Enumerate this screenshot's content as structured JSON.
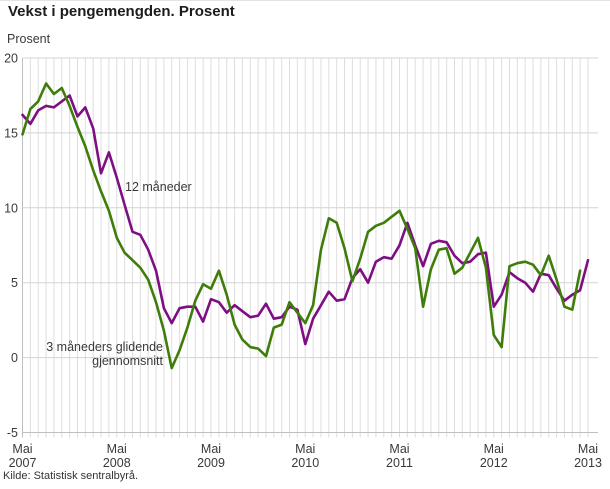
{
  "header": {
    "title": "Vekst i pengemengden. Prosent"
  },
  "source": {
    "text": "Kilde: Statistisk sentralbyrå."
  },
  "chart_data": {
    "type": "line",
    "title": "Vekst i pengemengden. Prosent",
    "ylabel": "Prosent",
    "xlabel": "",
    "ylim": [
      -5,
      20
    ],
    "y_ticks": [
      20,
      15,
      10,
      5,
      0,
      -5
    ],
    "grid": "both",
    "months_total": 73,
    "x_start": "2007-05",
    "x_end": "2013-05",
    "x_ticks": [
      {
        "at": 0,
        "line1": "Mai",
        "line2": "2007"
      },
      {
        "at": 12,
        "line1": "Mai",
        "line2": "2008"
      },
      {
        "at": 24,
        "line1": "Mai",
        "line2": "2009"
      },
      {
        "at": 36,
        "line1": "Mai",
        "line2": "2010"
      },
      {
        "at": 48,
        "line1": "Mai",
        "line2": "2011"
      },
      {
        "at": 60,
        "line1": "Mai",
        "line2": "2012"
      },
      {
        "at": 72,
        "line1": "Mai",
        "line2": "2013"
      }
    ],
    "series": [
      {
        "name": "12 måneder",
        "color": "#7d0f83",
        "values": [
          16.2,
          15.6,
          16.5,
          16.8,
          16.7,
          17.1,
          17.5,
          16.1,
          16.7,
          15.3,
          12.3,
          13.7,
          12.0,
          10.2,
          8.4,
          8.2,
          7.2,
          5.8,
          3.3,
          2.3,
          3.3,
          3.4,
          3.4,
          2.4,
          3.9,
          3.7,
          3.0,
          3.5,
          3.1,
          2.7,
          2.8,
          3.6,
          2.6,
          2.7,
          3.4,
          3.2,
          0.9,
          2.6,
          3.5,
          4.4,
          3.8,
          3.9,
          5.3,
          5.9,
          5.0,
          6.4,
          6.7,
          6.6,
          7.5,
          9.0,
          7.5,
          6.1,
          7.6,
          7.8,
          7.7,
          6.8,
          6.3,
          6.4,
          6.9,
          7.0,
          3.4,
          4.2,
          5.7,
          5.3,
          5.0,
          4.4,
          5.6,
          5.5,
          4.6,
          3.8,
          4.2,
          4.5,
          6.5
        ]
      },
      {
        "name": "3 måneders glidende gjennomsnitt",
        "color": "#3f7d0a",
        "values": [
          14.9,
          16.6,
          17.1,
          18.3,
          17.6,
          18.0,
          16.8,
          15.4,
          14.1,
          12.5,
          11.1,
          9.8,
          8.0,
          7.0,
          6.5,
          6.0,
          5.2,
          3.7,
          1.8,
          -0.7,
          0.5,
          2.0,
          3.8,
          4.9,
          4.6,
          5.8,
          4.2,
          2.2,
          1.2,
          0.7,
          0.6,
          0.1,
          2.0,
          2.2,
          3.7,
          3.0,
          2.3,
          3.5,
          7.2,
          9.3,
          9.0,
          7.3,
          5.1,
          6.6,
          8.4,
          8.8,
          9.0,
          9.4,
          9.8,
          8.6,
          7.3,
          3.4,
          5.9,
          7.2,
          7.3,
          5.6,
          6.0,
          7.0,
          8.0,
          6.0,
          1.5,
          0.7,
          6.1,
          6.3,
          6.4,
          6.2,
          5.5,
          6.8,
          5.2,
          3.4,
          3.2,
          5.8
        ]
      }
    ],
    "annotations": [
      {
        "text": "12 måneder"
      },
      {
        "text": "3 måneders glidende"
      },
      {
        "text": "gjennomsnitt"
      }
    ],
    "colors": {
      "grid_minor": "#dedede",
      "grid_major": "#d3d3d3",
      "axis": "#bfbfbf",
      "tick_text": "#3a3a3a",
      "annotation_text": "#3a3a3a"
    }
  }
}
